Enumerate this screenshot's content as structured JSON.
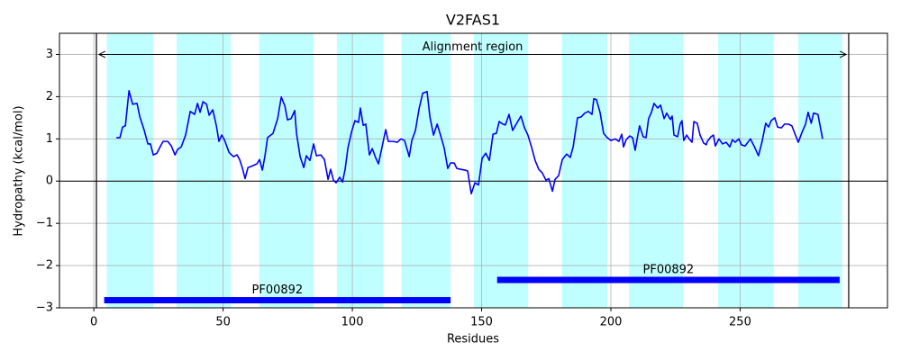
{
  "chart_data": {
    "type": "line",
    "title": "V2FAS1",
    "x_label": "Residues",
    "y_label": "Hydropathy (kcal/mol)",
    "xlim": [
      -13.3,
      307
    ],
    "ylim": [
      -3,
      3.5
    ],
    "xticks": [
      0,
      50,
      100,
      150,
      200,
      250
    ],
    "yticks": [
      {
        "value": -3,
        "label": "−3"
      },
      {
        "value": -2,
        "label": "−2"
      },
      {
        "value": -1,
        "label": "−1"
      },
      0,
      1,
      2,
      3
    ],
    "grid": true,
    "hline": 0,
    "vlines": [
      1,
      292
    ],
    "shaded_color": "#c0ffff",
    "shaded_regions": [
      [
        5,
        23
      ],
      [
        32,
        53
      ],
      [
        64,
        85
      ],
      [
        94,
        112
      ],
      [
        119,
        138
      ],
      [
        147,
        168
      ],
      [
        181,
        198.6
      ],
      [
        207,
        228
      ],
      [
        241.5,
        263
      ],
      [
        272.5,
        289.5
      ]
    ],
    "alignment_region": {
      "label": "Alignment region",
      "start": 2,
      "end": 291,
      "y": 3
    },
    "domain_color": "#0000ff",
    "domains": [
      {
        "label": "PF00892",
        "start": 4,
        "end": 138,
        "y": -2.82
      },
      {
        "label": "PF00892",
        "start": 156,
        "end": 288.5,
        "y": -2.34
      }
    ],
    "x": [
      8.7,
      10.1,
      11.1,
      12.2,
      13.6,
      15.0,
      16.7,
      17.8,
      19.5,
      20.9,
      21.9,
      23.0,
      24.4,
      25.8,
      26.8,
      28.6,
      30.0,
      31.4,
      32.4,
      33.8,
      35.5,
      37.3,
      39.0,
      40.1,
      41.1,
      42.2,
      43.6,
      44.6,
      46.0,
      47.4,
      48.4,
      49.5,
      50.5,
      52.3,
      54.0,
      55.4,
      56.4,
      57.5,
      58.5,
      59.6,
      61.3,
      63.1,
      64.1,
      65.2,
      66.2,
      67.2,
      69.3,
      71.1,
      72.5,
      73.9,
      74.9,
      76.3,
      77.7,
      78.4,
      79.8,
      81.2,
      82.2,
      83.6,
      85.0,
      86.1,
      87.8,
      89.2,
      90.6,
      91.6,
      92.7,
      93.7,
      95.1,
      96.2,
      97.2,
      98.3,
      99.7,
      101.0,
      102.4,
      103.1,
      104.2,
      105.2,
      106.6,
      107.7,
      109.1,
      110.1,
      111.5,
      112.9,
      113.9,
      115.7,
      117.4,
      118.8,
      120.2,
      122.0,
      123.0,
      124.4,
      125.8,
      127.2,
      128.9,
      130.0,
      131.4,
      132.8,
      134.1,
      135.5,
      136.9,
      138.0,
      139.4,
      140.4,
      141.8,
      143.6,
      144.6,
      146.0,
      147.4,
      148.8,
      150.2,
      151.6,
      153.0,
      154.4,
      155.7,
      156.8,
      158.2,
      159.2,
      160.6,
      162.0,
      163.4,
      165.2,
      166.6,
      167.9,
      169.3,
      170.7,
      172.1,
      173.5,
      174.9,
      176.0,
      177.4,
      178.4,
      179.8,
      181.2,
      182.9,
      184.3,
      185.4,
      187.1,
      188.5,
      189.9,
      191.3,
      192.7,
      193.4,
      194.4,
      195.8,
      197.2,
      198.6,
      200.0,
      201.7,
      203.1,
      204.2,
      204.9,
      205.9,
      207.3,
      208.4,
      209.4,
      210.1,
      211.1,
      212.5,
      213.6,
      214.6,
      215.7,
      216.7,
      218.1,
      219.2,
      220.6,
      221.6,
      223.0,
      223.7,
      224.4,
      225.8,
      226.8,
      227.5,
      228.2,
      229.3,
      230.3,
      231.4,
      232.1,
      233.4,
      234.5,
      235.9,
      236.9,
      237.3,
      238.7,
      239.7,
      240.4,
      241.8,
      243.2,
      244.6,
      246.0,
      247.0,
      248.1,
      249.5,
      250.5,
      251.9,
      253.0,
      254.0,
      255.7,
      257.1,
      258.5,
      259.9,
      261.0,
      262.0,
      263.4,
      264.5,
      265.9,
      267.2,
      268.6,
      270.0,
      271.4,
      272.5,
      273.9,
      275.3,
      276.3,
      277.5,
      278.4,
      280.1,
      281.9
    ],
    "series": [
      {
        "color": "#0000ff",
        "values": [
          1.03,
          1.03,
          1.28,
          1.31,
          2.14,
          1.82,
          1.84,
          1.52,
          1.2,
          0.88,
          0.88,
          0.62,
          0.66,
          0.83,
          0.94,
          0.94,
          0.83,
          0.62,
          0.75,
          0.81,
          1.09,
          1.65,
          1.58,
          1.84,
          1.63,
          1.88,
          1.82,
          1.56,
          1.69,
          1.31,
          0.94,
          1.09,
          0.98,
          0.68,
          0.58,
          0.62,
          0.51,
          0.3,
          0.06,
          0.32,
          0.36,
          0.41,
          0.51,
          0.26,
          0.6,
          1.03,
          1.13,
          1.48,
          1.99,
          1.78,
          1.45,
          1.48,
          1.67,
          1.13,
          0.58,
          0.32,
          0.6,
          0.49,
          0.88,
          0.6,
          0.62,
          0.51,
          0.04,
          0.28,
          0.02,
          -0.04,
          0.09,
          -0.02,
          0.28,
          0.79,
          1.17,
          1.43,
          1.39,
          1.73,
          1.32,
          1.35,
          0.62,
          0.77,
          0.54,
          0.41,
          0.81,
          1.22,
          0.94,
          0.94,
          0.92,
          1.0,
          0.96,
          0.58,
          0.96,
          1.2,
          1.71,
          2.08,
          2.12,
          1.52,
          1.09,
          1.35,
          1.09,
          0.79,
          0.3,
          0.43,
          0.43,
          0.3,
          0.28,
          0.26,
          0.24,
          -0.3,
          -0.04,
          -0.09,
          0.54,
          0.66,
          0.49,
          1.11,
          1.13,
          1.41,
          1.35,
          1.33,
          1.58,
          1.2,
          1.35,
          1.54,
          1.26,
          1.09,
          0.81,
          0.49,
          0.28,
          0.19,
          0.02,
          0.06,
          -0.24,
          0.04,
          0.13,
          0.51,
          0.64,
          0.56,
          0.81,
          1.5,
          1.52,
          1.61,
          1.65,
          1.58,
          1.95,
          1.93,
          1.63,
          1.13,
          1.03,
          0.96,
          1.0,
          0.94,
          1.11,
          0.81,
          0.98,
          1.07,
          1.03,
          0.73,
          0.98,
          1.31,
          1.05,
          1.03,
          1.48,
          1.63,
          1.84,
          1.73,
          1.8,
          1.48,
          1.61,
          1.46,
          1.54,
          1.09,
          1.05,
          1.35,
          1.43,
          0.96,
          1.09,
          1.0,
          0.92,
          1.41,
          1.37,
          1.09,
          0.9,
          0.86,
          0.94,
          1.05,
          1.09,
          0.83,
          1.0,
          0.88,
          0.92,
          0.81,
          0.98,
          0.92,
          1.0,
          0.86,
          0.83,
          0.92,
          1.0,
          0.79,
          0.6,
          0.94,
          1.37,
          1.28,
          1.43,
          1.5,
          1.28,
          1.26,
          1.35,
          1.35,
          1.31,
          1.09,
          0.92,
          1.15,
          1.35,
          1.63,
          1.37,
          1.61,
          1.58,
          1.0
        ]
      }
    ]
  }
}
